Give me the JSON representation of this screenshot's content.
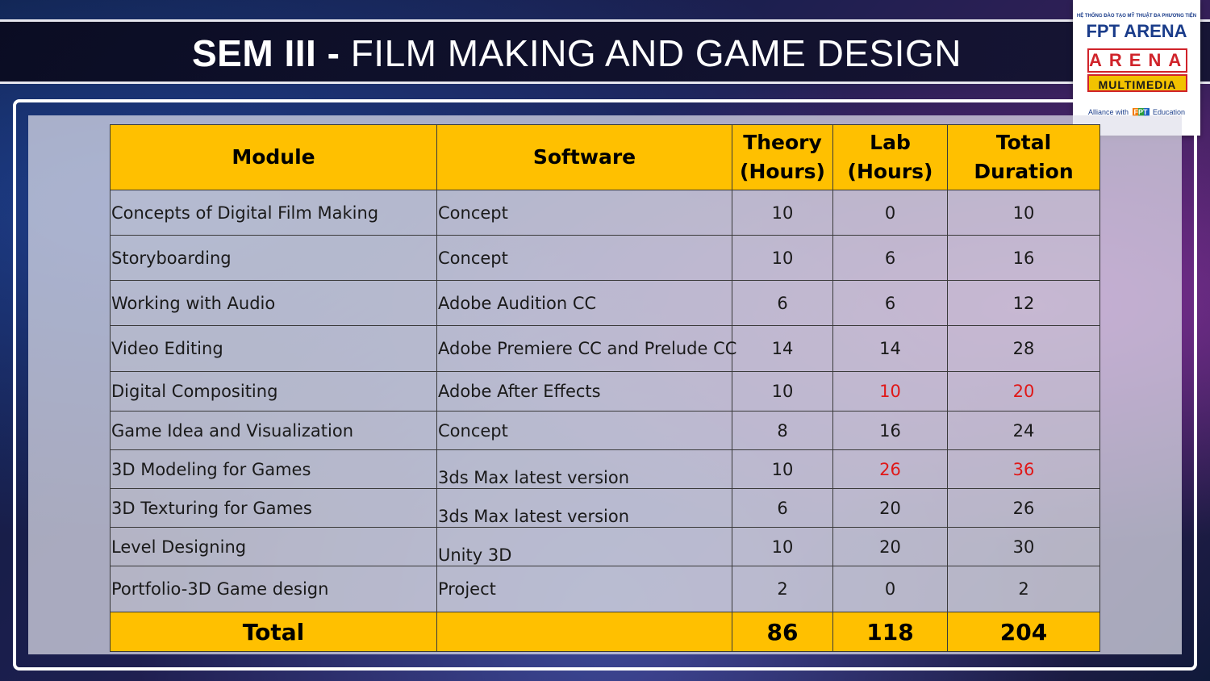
{
  "title": {
    "bold": "SEM III - ",
    "rest": " FILM MAKING AND GAME DESIGN"
  },
  "logo": {
    "tagline": "HỆ THỐNG ĐÀO TẠO MỸ THUẬT ĐA PHƯƠNG TIỆN",
    "brand": "FPT ARENA",
    "arena": "ARENA",
    "multimedia": "MULTIMEDIA",
    "alliance_prefix": "Alliance with",
    "alliance_fpt": "FPT",
    "alliance_suffix": "Education"
  },
  "table": {
    "headers": {
      "module": "Module",
      "software": "Software",
      "theory_1": "Theory",
      "theory_2": "(Hours)",
      "lab_1": "Lab",
      "lab_2": "(Hours)",
      "total_1": "Total",
      "total_2": "Duration"
    },
    "rows": [
      {
        "module": "Concepts of Digital Film Making",
        "software": "Concept",
        "theory": "10",
        "lab": "0",
        "total": "10"
      },
      {
        "module": "Storyboarding",
        "software": "Concept",
        "theory": "10",
        "lab": "6",
        "total": "16"
      },
      {
        "module": "Working with Audio",
        "software": "Adobe Audition CC",
        "theory": "6",
        "lab": "6",
        "total": "12"
      },
      {
        "module": "Video Editing",
        "software": "Adobe Premiere CC and Prelude CC",
        "theory": "14",
        "lab": "14",
        "total": "28"
      },
      {
        "module": "Digital Compositing",
        "software": "Adobe After Effects",
        "theory": "10",
        "lab": "10",
        "total": "20"
      },
      {
        "module": "Game Idea and Visualization",
        "software": "Concept",
        "theory": "8",
        "lab": "16",
        "total": "24"
      },
      {
        "module": "3D Modeling for  Games",
        "software": "3ds Max latest version",
        "theory": "10",
        "lab": "26",
        "total": "36"
      },
      {
        "module": "3D Texturing for Games",
        "software": "3ds Max latest version",
        "theory": "6",
        "lab": "20",
        "total": "26"
      },
      {
        "module": "Level Designing",
        "software": "Unity 3D",
        "theory": "10",
        "lab": "20",
        "total": "30"
      },
      {
        "module": "Portfolio-3D Game design",
        "software": "Project",
        "theory": "2",
        "lab": "0",
        "total": "2"
      }
    ],
    "footer": {
      "label": "Total",
      "software": "",
      "theory": "86",
      "lab": "118",
      "total": "204"
    },
    "highlight_color": "#ffc000",
    "alert_color": "#e01818"
  }
}
